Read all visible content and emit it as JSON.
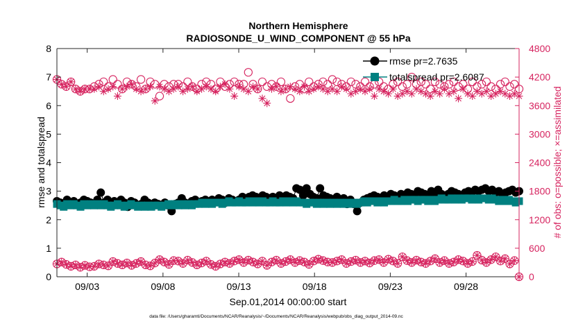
{
  "chart_data": {
    "type": "line",
    "title": "Northern Hemisphere",
    "subtitle": "RADIOSONDE_U_WIND_COMPONENT @ 55 hPa",
    "xlabel": "Sep.01,2014 00:00:00 start",
    "ylabel_left": "rmse and totalspread",
    "ylabel_right": "# of obs: o=possible; ×=assimilated",
    "footer": "data file: /Users/gharamti/Documents/NCAR/Reanalysis/~/Documents/NCAR/Reanalysis/webpub/obs_diag_output_2014-09.nc",
    "x_range_days": [
      1,
      31.5
    ],
    "x_ticks": [
      {
        "day": 3,
        "label": "09/03"
      },
      {
        "day": 8,
        "label": "09/08"
      },
      {
        "day": 13,
        "label": "09/13"
      },
      {
        "day": 18,
        "label": "09/18"
      },
      {
        "day": 23,
        "label": "09/23"
      },
      {
        "day": 28,
        "label": "09/28"
      }
    ],
    "ylim_left": [
      0,
      8
    ],
    "yticks_left": [
      "0",
      "1",
      "2",
      "3",
      "4",
      "5",
      "6",
      "7",
      "8"
    ],
    "ylim_right": [
      0,
      4800
    ],
    "yticks_right": [
      "0",
      "600",
      "1200",
      "1800",
      "2400",
      "3000",
      "3600",
      "4200",
      "4800"
    ],
    "legend": [
      {
        "label": "rmse pr=2.7635",
        "marker": "circle",
        "color": "#000000"
      },
      {
        "label": "totalspread pr=2.6087",
        "marker": "square",
        "color": "#008080"
      }
    ],
    "colors": {
      "rmse": "#000000",
      "totalspread": "#008080",
      "obs": "#d6235f"
    },
    "series": {
      "rmse": [
        2.65,
        2.6,
        2.55,
        2.7,
        2.6,
        2.65,
        2.55,
        2.6,
        2.7,
        2.65,
        2.6,
        2.55,
        2.7,
        2.95,
        2.6,
        2.7,
        2.55,
        2.65,
        2.6,
        2.7,
        2.6,
        2.45,
        2.65,
        2.6,
        2.5,
        2.55,
        2.7,
        2.6,
        2.5,
        2.6,
        2.55,
        2.5,
        2.6,
        2.5,
        2.3,
        2.55,
        2.6,
        2.75,
        2.6,
        2.55,
        2.65,
        2.7,
        2.6,
        2.65,
        2.7,
        2.6,
        2.7,
        2.65,
        2.75,
        2.7,
        2.6,
        2.75,
        2.7,
        2.65,
        2.7,
        2.8,
        2.75,
        2.8,
        2.85,
        2.8,
        2.75,
        2.85,
        2.8,
        2.75,
        2.8,
        2.7,
        2.85,
        2.8,
        2.85,
        2.8,
        2.75,
        3.1,
        3.05,
        2.85,
        3.1,
        2.9,
        2.8,
        2.75,
        3.1,
        2.85,
        2.8,
        2.75,
        2.7,
        2.8,
        2.7,
        2.75,
        2.55,
        2.7,
        2.55,
        2.3,
        2.6,
        2.7,
        2.75,
        2.8,
        2.85,
        2.8,
        2.7,
        2.85,
        2.8,
        2.9,
        2.85,
        2.8,
        2.9,
        2.85,
        2.95,
        2.9,
        2.85,
        3.0,
        2.95,
        2.9,
        2.85,
        3.0,
        2.9,
        3.05,
        2.9,
        2.85,
        2.9,
        3.0,
        2.95,
        2.9,
        2.85,
        2.95,
        3.0,
        2.95,
        3.05,
        3.0,
        3.05,
        3.1,
        3.0,
        3.05,
        2.95,
        3.0,
        2.9,
        2.95,
        3.0,
        3.05,
        2.95,
        3.0
      ],
      "totalspread": [
        2.55,
        2.5,
        2.45,
        2.55,
        2.5,
        2.55,
        2.5,
        2.45,
        2.55,
        2.5,
        2.55,
        2.5,
        2.55,
        2.5,
        2.55,
        2.5,
        2.45,
        2.5,
        2.55,
        2.5,
        2.45,
        2.5,
        2.55,
        2.5,
        2.45,
        2.5,
        2.45,
        2.5,
        2.45,
        2.5,
        2.5,
        2.45,
        2.5,
        2.55,
        2.5,
        2.55,
        2.5,
        2.55,
        2.5,
        2.55,
        2.5,
        2.55,
        2.55,
        2.6,
        2.55,
        2.6,
        2.55,
        2.6,
        2.6,
        2.55,
        2.6,
        2.65,
        2.6,
        2.6,
        2.65,
        2.6,
        2.6,
        2.65,
        2.6,
        2.65,
        2.6,
        2.65,
        2.6,
        2.6,
        2.65,
        2.6,
        2.6,
        2.65,
        2.6,
        2.65,
        2.6,
        2.65,
        2.6,
        2.6,
        2.55,
        2.6,
        2.6,
        2.55,
        2.6,
        2.55,
        2.6,
        2.55,
        2.6,
        2.55,
        2.6,
        2.55,
        2.6,
        2.55,
        2.6,
        2.55,
        2.6,
        2.65,
        2.6,
        2.65,
        2.65,
        2.6,
        2.65,
        2.6,
        2.65,
        2.65,
        2.7,
        2.65,
        2.65,
        2.7,
        2.65,
        2.7,
        2.7,
        2.65,
        2.7,
        2.7,
        2.65,
        2.7,
        2.65,
        2.7,
        2.75,
        2.7,
        2.7,
        2.75,
        2.7,
        2.75,
        2.7,
        2.75,
        2.75,
        2.7,
        2.75,
        2.7,
        2.75,
        2.75,
        2.7,
        2.75,
        2.7,
        2.65,
        2.7,
        2.65,
        2.7,
        2.65,
        2.6,
        2.65
      ],
      "obs_possible": [
        4150,
        4050,
        4000,
        4100,
        3950,
        3900,
        3950,
        3950,
        4000,
        4050,
        4100,
        4000,
        4150,
        4050,
        3950,
        4100,
        4050,
        4000,
        4150,
        3950,
        4100,
        4050,
        3800,
        4050,
        4000,
        4050,
        4050,
        4000,
        4100,
        4000,
        3950,
        4050,
        4100,
        4050,
        3950,
        4100,
        4000,
        4050,
        4100,
        4050,
        4050,
        4300,
        4050,
        3950,
        4100,
        4000,
        4050,
        4000,
        4100,
        3950,
        3750,
        4000,
        4050,
        3950,
        4100,
        4000,
        4050,
        4100,
        4050,
        4150,
        4100,
        4050,
        4000,
        4100,
        4050,
        4000,
        4100,
        4000,
        4050,
        4100,
        4000,
        3950,
        4050,
        4100,
        4000,
        4050,
        4200,
        4050,
        4100,
        4050,
        3950,
        4100,
        4050,
        4000,
        4050,
        4100,
        4000,
        4050,
        3950,
        4100,
        4000,
        4050,
        4100,
        4000,
        3950,
        4050,
        4100,
        4000,
        4050,
        3950
      ],
      "obs_assimilated": [
        4150,
        4050,
        4000,
        4100,
        3950,
        3900,
        3950,
        3950,
        3950,
        4000,
        3900,
        3950,
        4000,
        3800,
        3950,
        4000,
        4050,
        3950,
        3900,
        3950,
        4000,
        3700,
        4000,
        3950,
        3900,
        3950,
        4000,
        3900,
        3950,
        4000,
        3900,
        3950,
        4000,
        3950,
        3900,
        4000,
        4050,
        3950,
        3800,
        4000,
        3950,
        3900,
        4000,
        3950,
        3750,
        3650,
        3950,
        4000,
        3900,
        3950,
        4000,
        3950,
        3900,
        4000,
        3900,
        3950,
        4000,
        3950,
        3900,
        3950,
        3900,
        4000,
        3950,
        3850,
        3900,
        3950,
        3900,
        3950,
        3800,
        3950,
        3900,
        3850,
        3950,
        3800,
        3850,
        3900,
        3850,
        3950,
        3900,
        3850,
        3800,
        3900,
        3850,
        3950,
        3850,
        3900,
        3750,
        3950,
        3850,
        3800,
        3900,
        3850,
        3900,
        3800,
        3850,
        3900,
        3850,
        3800,
        3850,
        3800
      ],
      "obs_low": [
        270,
        310,
        260,
        220,
        250,
        200,
        240,
        210,
        220,
        270,
        250,
        230,
        320,
        280,
        250,
        290,
        240,
        280,
        320,
        250,
        230,
        290,
        360,
        310,
        260,
        340,
        330,
        280,
        350,
        300,
        250,
        290,
        330,
        260,
        220,
        270,
        310,
        280,
        330,
        360,
        300,
        350,
        310,
        270,
        330,
        240,
        310,
        350,
        280,
        320,
        360,
        300,
        340,
        310,
        260,
        330,
        370,
        340,
        310,
        300,
        330,
        360,
        280,
        320,
        350,
        300,
        330,
        290,
        340,
        360,
        300,
        370,
        330,
        280,
        420,
        340,
        300,
        350,
        310,
        280,
        330,
        380,
        300,
        340,
        280,
        310,
        360,
        330,
        280,
        320,
        450,
        350,
        300,
        360,
        420,
        330,
        380,
        270,
        340,
        0
      ]
    }
  }
}
